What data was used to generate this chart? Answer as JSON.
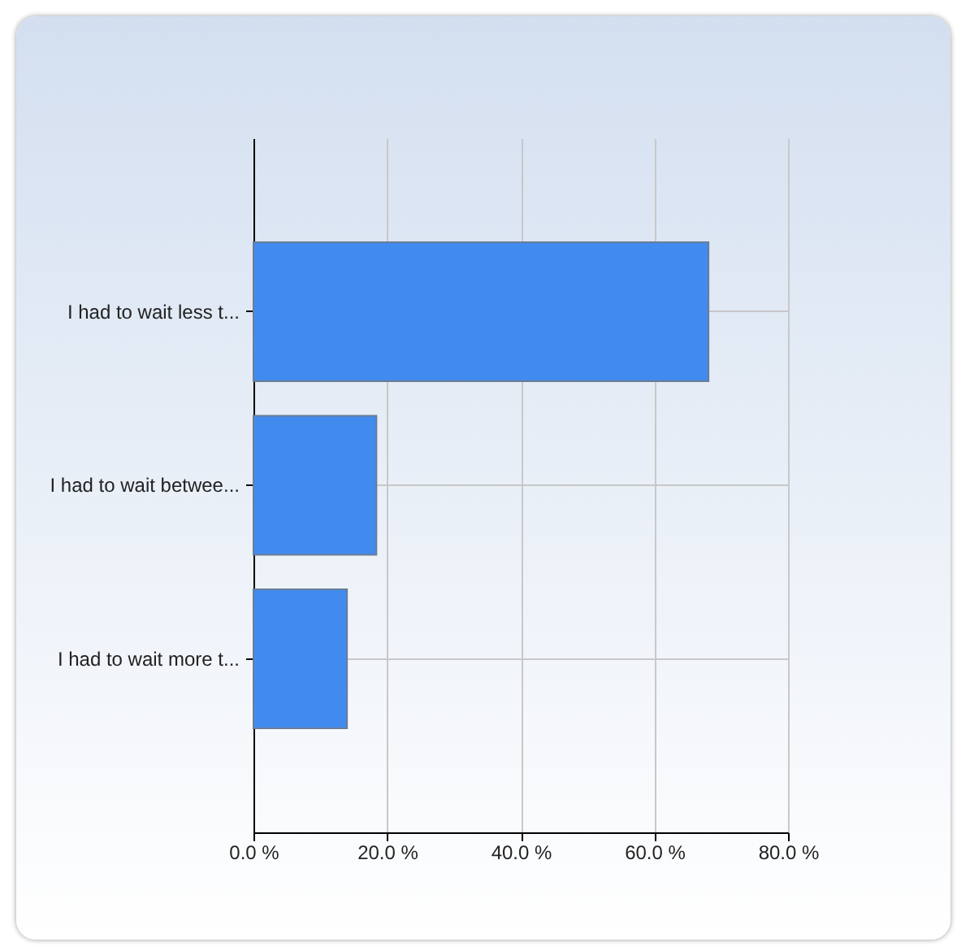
{
  "chart_data": {
    "type": "bar",
    "orientation": "horizontal",
    "categories": [
      "I had to wait less t...",
      "I had to wait betwee...",
      "I had to wait more t..."
    ],
    "values": [
      68.1,
      18.4,
      14.0
    ],
    "color": "#418bef",
    "xlim": [
      0,
      80
    ],
    "xticks": [
      {
        "value": 0,
        "label": "0.0 %"
      },
      {
        "value": 20,
        "label": "20.0 %"
      },
      {
        "value": 40,
        "label": "40.0 %"
      },
      {
        "value": 60,
        "label": "60.0 %"
      },
      {
        "value": 80,
        "label": "80.0 %"
      }
    ],
    "grid": true
  }
}
